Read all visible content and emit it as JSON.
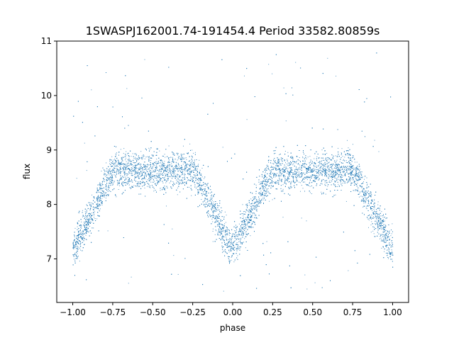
{
  "chart_data": {
    "type": "scatter",
    "title": "1SWASPJ162001.74-191454.4 Period 33582.80859s",
    "xlabel": "phase",
    "ylabel": "flux",
    "xlim": [
      -1.1,
      1.1
    ],
    "ylim": [
      6.2,
      11.0
    ],
    "xticks": [
      -1.0,
      -0.75,
      -0.5,
      -0.25,
      0.0,
      0.25,
      0.5,
      0.75,
      1.0
    ],
    "xtick_labels": [
      "−1.00",
      "−0.75",
      "−0.50",
      "−0.25",
      "0.00",
      "0.25",
      "0.50",
      "0.75",
      "1.00"
    ],
    "yticks": [
      7,
      8,
      9,
      10,
      11
    ],
    "ytick_labels": [
      "7",
      "8",
      "9",
      "10",
      "11"
    ],
    "grid": false,
    "marker_color": "#1f77b4",
    "phase_range": [
      -1.0,
      1.0
    ],
    "baseline_flux": 8.65,
    "eclipse_min_flux": 7.15,
    "eclipse_centers": [
      -1.0,
      0.0,
      1.0
    ],
    "eclipse_half_width": 0.25,
    "secondary_eclipse_centers": [
      -0.5,
      0.5
    ],
    "secondary_eclipse_depth": 0.05
  }
}
